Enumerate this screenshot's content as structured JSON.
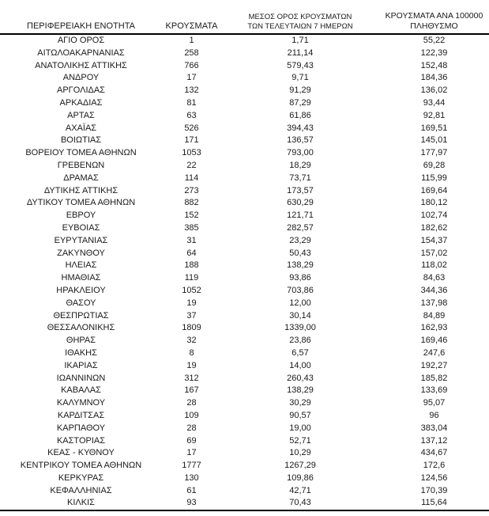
{
  "table": {
    "columns": [
      {
        "label": "ΠΕΡΙΦΕΡΕΙΑΚΗ ΕΝΟΤΗΤΑ"
      },
      {
        "label": "ΚΡΟΥΣΜΑΤΑ"
      },
      {
        "label": "ΜΕΣΟΣ ΟΡΟΣ ΚΡΟΥΣΜΑΤΩΝ ΤΩΝ ΤΕΛΕΥΤΑΙΩΝ 7 ΗΜΕΡΩΝ",
        "line1": "ΜΕΣΟΣ ΟΡΟΣ ΚΡΟΥΣΜΑΤΩΝ",
        "line2": "ΤΩΝ ΤΕΛΕΥΤΑΙΩΝ 7 ΗΜΕΡΩΝ"
      },
      {
        "label": "ΚΡΟΥΣΜΑΤΑ ΑΝΑ 100000 ΠΛΗΘΥΣΜΟ",
        "line1": "ΚΡΟΥΣΜΑΤΑ ΑΝΑ 100000",
        "line2": "ΠΛΗΘΥΣΜΟ"
      }
    ],
    "rows": [
      [
        "ΑΓΙΟ ΟΡΟΣ",
        "1",
        "1,71",
        "55,22"
      ],
      [
        "ΑΙΤΩΛΟΑΚΑΡΝΑΝΙΑΣ",
        "258",
        "211,14",
        "122,39"
      ],
      [
        "ΑΝΑΤΟΛΙΚΗΣ ΑΤΤΙΚΗΣ",
        "766",
        "579,43",
        "152,48"
      ],
      [
        "ΑΝΔΡΟΥ",
        "17",
        "9,71",
        "184,36"
      ],
      [
        "ΑΡΓΟΛΙΔΑΣ",
        "132",
        "91,29",
        "136,02"
      ],
      [
        "ΑΡΚΑΔΙΑΣ",
        "81",
        "87,29",
        "93,44"
      ],
      [
        "ΑΡΤΑΣ",
        "63",
        "61,86",
        "92,81"
      ],
      [
        "ΑΧΑΪΑΣ",
        "526",
        "394,43",
        "169,51"
      ],
      [
        "ΒΟΙΩΤΙΑΣ",
        "171",
        "136,57",
        "145,01"
      ],
      [
        "ΒΟΡΕΙΟΥ ΤΟΜΕΑ ΑΘΗΝΩΝ",
        "1053",
        "793,00",
        "177,97"
      ],
      [
        "ΓΡΕΒΕΝΩΝ",
        "22",
        "18,29",
        "69,28"
      ],
      [
        "ΔΡΑΜΑΣ",
        "114",
        "73,71",
        "115,99"
      ],
      [
        "ΔΥΤΙΚΗΣ ΑΤΤΙΚΗΣ",
        "273",
        "173,57",
        "169,64"
      ],
      [
        "ΔΥΤΙΚΟΥ ΤΟΜΕΑ ΑΘΗΝΩΝ",
        "882",
        "630,29",
        "180,12"
      ],
      [
        "ΕΒΡΟΥ",
        "152",
        "121,71",
        "102,74"
      ],
      [
        "ΕΥΒΟΙΑΣ",
        "385",
        "282,57",
        "182,62"
      ],
      [
        "ΕΥΡΥΤΑΝΙΑΣ",
        "31",
        "23,29",
        "154,37"
      ],
      [
        "ΖΑΚΥΝΘΟΥ",
        "64",
        "50,43",
        "157,02"
      ],
      [
        "ΗΛΕΙΑΣ",
        "188",
        "138,29",
        "118,02"
      ],
      [
        "ΗΜΑΘΙΑΣ",
        "119",
        "93,86",
        "84,63"
      ],
      [
        "ΗΡΑΚΛΕΙΟΥ",
        "1052",
        "703,86",
        "344,36"
      ],
      [
        "ΘΑΣΟΥ",
        "19",
        "12,00",
        "137,98"
      ],
      [
        "ΘΕΣΠΡΩΤΙΑΣ",
        "37",
        "30,14",
        "84,89"
      ],
      [
        "ΘΕΣΣΑΛΟΝΙΚΗΣ",
        "1809",
        "1339,00",
        "162,93"
      ],
      [
        "ΘΗΡΑΣ",
        "32",
        "23,86",
        "169,46"
      ],
      [
        "ΙΘΑΚΗΣ",
        "8",
        "6,57",
        "247,6"
      ],
      [
        "ΙΚΑΡΙΑΣ",
        "19",
        "14,00",
        "192,27"
      ],
      [
        "ΙΩΑΝΝΙΝΩΝ",
        "312",
        "260,43",
        "185,82"
      ],
      [
        "ΚΑΒΑΛΑΣ",
        "167",
        "138,29",
        "133,69"
      ],
      [
        "ΚΑΛΥΜΝΟΥ",
        "28",
        "30,29",
        "95,07"
      ],
      [
        "ΚΑΡΔΙΤΣΑΣ",
        "109",
        "90,57",
        "96"
      ],
      [
        "ΚΑΡΠΑΘΟΥ",
        "28",
        "19,00",
        "383,04"
      ],
      [
        "ΚΑΣΤΟΡΙΑΣ",
        "69",
        "52,71",
        "137,12"
      ],
      [
        "ΚΕΑΣ - ΚΥΘΝΟΥ",
        "17",
        "10,29",
        "434,67"
      ],
      [
        "ΚΕΝΤΡΙΚΟΥ ΤΟΜΕΑ ΑΘΗΝΩΝ",
        "1777",
        "1267,29",
        "172,6"
      ],
      [
        "ΚΕΡΚΥΡΑΣ",
        "130",
        "109,86",
        "124,56"
      ],
      [
        "ΚΕΦΑΛΛΗΝΙΑΣ",
        "61",
        "42,71",
        "170,39"
      ],
      [
        "ΚΙΛΚΙΣ",
        "93",
        "70,43",
        "115,64"
      ]
    ]
  }
}
